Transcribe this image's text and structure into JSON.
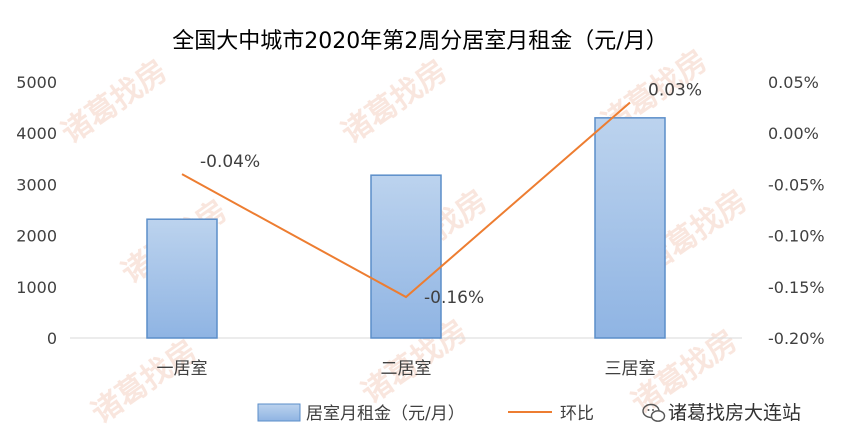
{
  "chart_data": {
    "type": "bar+line",
    "title": "全国大中城市2020年第2周分居室月租金（元/月）",
    "categories": [
      "一居室",
      "二居室",
      "三居室"
    ],
    "series": [
      {
        "name": "居室月租金（元/月）",
        "type": "bar",
        "axis": "left",
        "values": [
          2320,
          3180,
          4300
        ]
      },
      {
        "name": "环比",
        "type": "line",
        "axis": "right",
        "values": [
          -0.04,
          -0.16,
          0.03
        ],
        "data_labels": [
          "-0.04%",
          "-0.16%",
          "0.03%"
        ]
      }
    ],
    "y_left": {
      "ylim": [
        0,
        5000
      ],
      "ticks": [
        "0",
        "1000",
        "2000",
        "3000",
        "4000",
        "5000"
      ]
    },
    "y_right": {
      "ylim": [
        -0.2,
        0.05
      ],
      "ticks": [
        "-0.20%",
        "-0.15%",
        "-0.10%",
        "-0.05%",
        "0.00%",
        "0.05%"
      ]
    },
    "legend_position": "bottom",
    "grid": false
  },
  "colors": {
    "bar_fill_top": "#bcd3ee",
    "bar_fill_bottom": "#8fb4e3",
    "bar_stroke": "#5b8ec9",
    "line": "#ed7d31"
  },
  "watermark": "诸葛找房",
  "footer_brand": "诸葛找房大连站",
  "footer_icon": "wechat-icon"
}
